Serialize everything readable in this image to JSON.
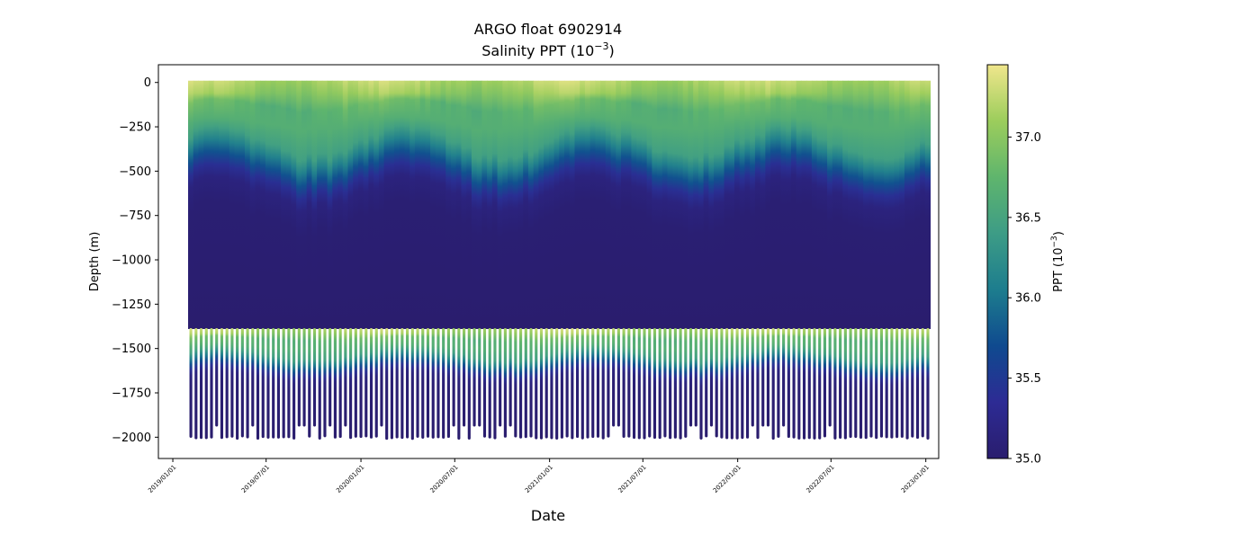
{
  "chart_data": {
    "type": "heatmap",
    "title_line1": "ARGO float 6902914",
    "title_line2": "Salinity PPT (10",
    "title_line2_sup": "−3",
    "title_line2_end": ")",
    "xlabel": "Date",
    "ylabel": "Depth (m)",
    "colorbar_label": "PPT (10",
    "colorbar_label_sup": "−3",
    "colorbar_label_end": ")",
    "colormap": [
      "#2a1d6e",
      "#2d2b94",
      "#0f4a8f",
      "#1d7d8e",
      "#3d9c86",
      "#5fb56d",
      "#9ccd5c",
      "#f0e68c"
    ],
    "colorbar_range": [
      35.0,
      37.45
    ],
    "colorbar_ticks": [
      {
        "value": 35.0,
        "label": "35.0"
      },
      {
        "value": 35.5,
        "label": "35.5"
      },
      {
        "value": 36.0,
        "label": "36.0"
      },
      {
        "value": 36.5,
        "label": "36.5"
      },
      {
        "value": 37.0,
        "label": "37.0"
      }
    ],
    "x_range": [
      "2018-12-04",
      "2023-01-26"
    ],
    "y_range": [
      -2120,
      100
    ],
    "x_ticks": [
      {
        "date": "2019-01-01",
        "label": "2019/01/01"
      },
      {
        "date": "2019-07-01",
        "label": "2019/07/01"
      },
      {
        "date": "2020-01-01",
        "label": "2020/01/01"
      },
      {
        "date": "2020-07-01",
        "label": "2020/07/01"
      },
      {
        "date": "2021-01-01",
        "label": "2021/01/01"
      },
      {
        "date": "2021-07-01",
        "label": "2021/07/01"
      },
      {
        "date": "2022-01-01",
        "label": "2022/01/01"
      },
      {
        "date": "2022-07-01",
        "label": "2022/07/01"
      },
      {
        "date": "2023-01-01",
        "label": "2023/01/01"
      }
    ],
    "y_ticks": [
      {
        "value": 0,
        "label": "0"
      },
      {
        "value": -250,
        "label": "−250"
      },
      {
        "value": -500,
        "label": "−500"
      },
      {
        "value": -750,
        "label": "−750"
      },
      {
        "value": -1000,
        "label": "−1000"
      },
      {
        "value": -1250,
        "label": "−1250"
      },
      {
        "value": -1500,
        "label": "−1500"
      },
      {
        "value": -1750,
        "label": "−1750"
      },
      {
        "value": -2000,
        "label": "−2000"
      }
    ],
    "profiles": {
      "first_date": "2019-02-05",
      "last_date": "2023-01-02",
      "interval_days": 10,
      "shallow_depth_end": -1390,
      "max_depth_typical": -2000
    },
    "salinity_profile_typical": [
      {
        "depth": 0,
        "value": 37.2
      },
      {
        "depth": -100,
        "value": 37.05
      },
      {
        "depth": -200,
        "value": 36.75
      },
      {
        "depth": -350,
        "value": 36.65
      },
      {
        "depth": -500,
        "value": 36.45
      },
      {
        "depth": -600,
        "value": 36.1
      },
      {
        "depth": -700,
        "value": 35.75
      },
      {
        "depth": -800,
        "value": 35.4
      },
      {
        "depth": -900,
        "value": 35.15
      },
      {
        "depth": -1100,
        "value": 35.05
      },
      {
        "depth": -2000,
        "value": 35.0
      }
    ]
  }
}
